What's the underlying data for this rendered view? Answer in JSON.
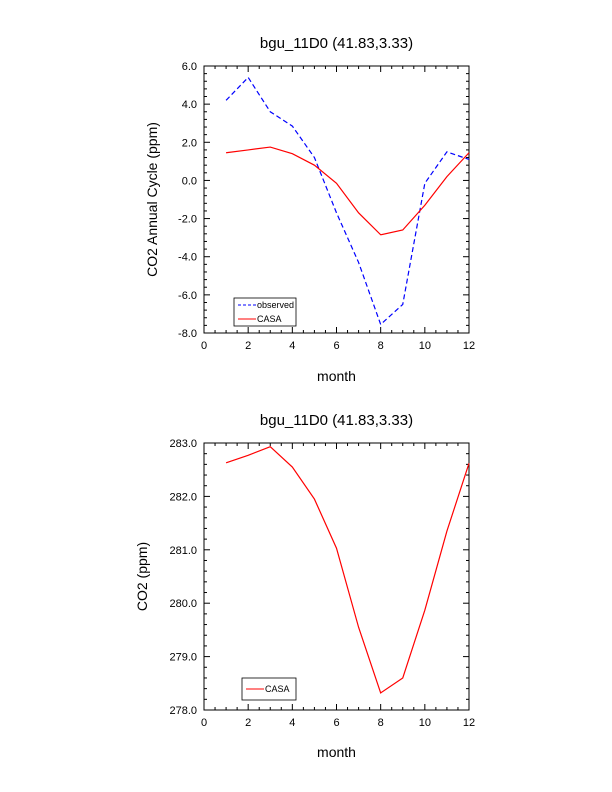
{
  "chart_data": [
    {
      "type": "line",
      "title": "bgu_11D0 (41.83,3.33)",
      "xlabel": "month",
      "ylabel": "CO2 Annual Cycle (ppm)",
      "xlim": [
        0,
        12
      ],
      "ylim": [
        -8,
        6
      ],
      "xticks": [
        0,
        2,
        4,
        6,
        8,
        10,
        12
      ],
      "yticks": [
        -8,
        -6,
        -4,
        -2,
        0,
        2,
        4,
        6
      ],
      "yticklabels": [
        "-8.0",
        "-6.0",
        "-4.0",
        "-2.0",
        "0.0",
        "2.0",
        "4.0",
        "6.0"
      ],
      "grid": false,
      "legend_position": "bottom-left",
      "x": [
        1,
        2,
        3,
        4,
        5,
        6,
        7,
        8,
        9,
        10,
        11,
        12
      ],
      "series": [
        {
          "name": "observed",
          "color": "#0000ff",
          "dash": true,
          "values": [
            4.2,
            5.4,
            3.6,
            2.85,
            1.2,
            -1.7,
            -4.3,
            -7.55,
            -6.5,
            -0.15,
            1.5,
            1.1
          ]
        },
        {
          "name": "CASA",
          "color": "#ff0000",
          "dash": false,
          "values": [
            1.45,
            1.6,
            1.75,
            1.4,
            0.8,
            -0.15,
            -1.7,
            -2.85,
            -2.6,
            -1.3,
            0.2,
            1.45
          ]
        }
      ]
    },
    {
      "type": "line",
      "title": "bgu_11D0 (41.83,3.33)",
      "xlabel": "month",
      "ylabel": "CO2 (ppm)",
      "xlim": [
        0,
        12
      ],
      "ylim": [
        278,
        283
      ],
      "xticks": [
        0,
        2,
        4,
        6,
        8,
        10,
        12
      ],
      "yticks": [
        278,
        279,
        280,
        281,
        282,
        283
      ],
      "yticklabels": [
        "278.0",
        "279.0",
        "280.0",
        "281.0",
        "282.0",
        "283.0"
      ],
      "grid": false,
      "legend_position": "bottom-left",
      "x": [
        1,
        2,
        3,
        4,
        5,
        6,
        7,
        8,
        9,
        10,
        11,
        12
      ],
      "series": [
        {
          "name": "CASA",
          "color": "#ff0000",
          "dash": false,
          "values": [
            282.63,
            282.77,
            282.93,
            282.55,
            281.95,
            281.03,
            279.55,
            278.32,
            278.6,
            279.87,
            281.35,
            282.62
          ]
        }
      ]
    }
  ]
}
